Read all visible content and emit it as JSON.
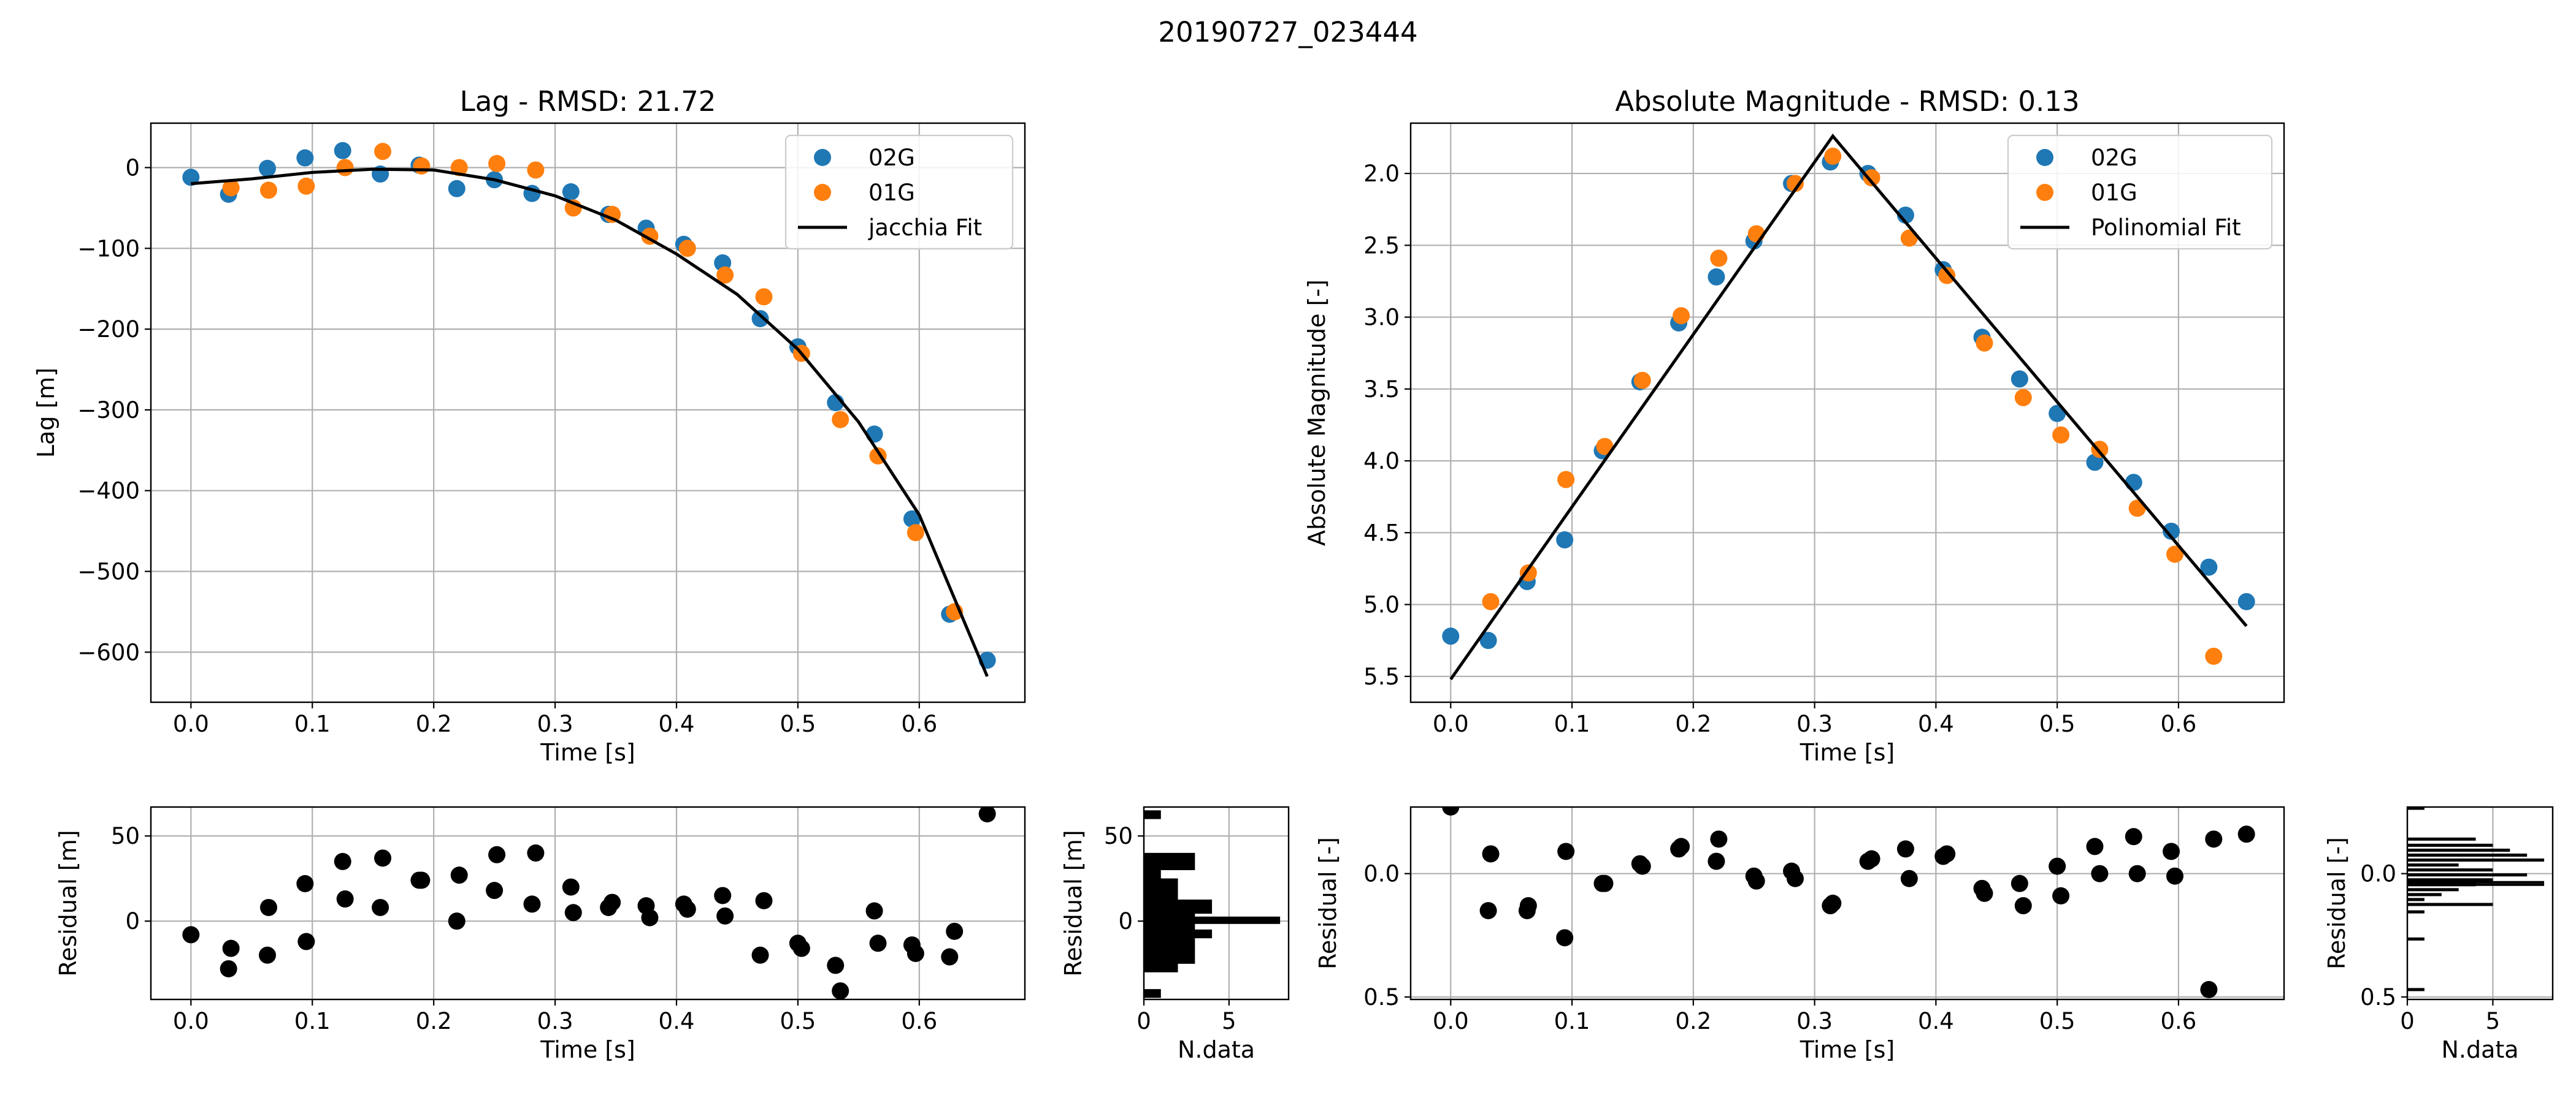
{
  "figure_title": "20190727_023444",
  "colors": {
    "series_02G": "#1f77b4",
    "series_01G": "#ff7f0e",
    "fit": "#000000",
    "residual": "#000000",
    "grid": "#b0b0b0"
  },
  "chart_data": [
    {
      "type": "scatter",
      "title": "Lag - RMSD: 21.72",
      "xlabel": "Time [s]",
      "ylabel": "Lag [m]",
      "xlim": [
        -0.033,
        0.687
      ],
      "ylim": [
        -662,
        55
      ],
      "xticks": [
        "0.0",
        "0.1",
        "0.2",
        "0.3",
        "0.4",
        "0.5",
        "0.6"
      ],
      "yticks": [
        "0",
        "−100",
        "−200",
        "−300",
        "−400",
        "−500",
        "−600"
      ],
      "grid": true,
      "legend": {
        "position": "top-right",
        "entries": [
          "02G",
          "01G",
          "jacchia Fit"
        ]
      },
      "series": [
        {
          "name": "02G",
          "points": [
            [
              0.0,
              -12
            ],
            [
              0.031,
              -33
            ],
            [
              0.063,
              -1
            ],
            [
              0.094,
              12
            ],
            [
              0.125,
              21
            ],
            [
              0.156,
              -8
            ],
            [
              0.188,
              3
            ],
            [
              0.219,
              -26
            ],
            [
              0.25,
              -15
            ],
            [
              0.281,
              -32
            ],
            [
              0.313,
              -30
            ],
            [
              0.344,
              -58
            ],
            [
              0.375,
              -75
            ],
            [
              0.406,
              -95
            ],
            [
              0.438,
              -118
            ],
            [
              0.469,
              -187
            ],
            [
              0.5,
              -222
            ],
            [
              0.531,
              -291
            ],
            [
              0.563,
              -330
            ],
            [
              0.594,
              -435
            ],
            [
              0.625,
              -553
            ],
            [
              0.656,
              -610
            ]
          ]
        },
        {
          "name": "01G",
          "points": [
            [
              0.033,
              -25
            ],
            [
              0.064,
              -28
            ],
            [
              0.095,
              -23
            ],
            [
              0.127,
              0
            ],
            [
              0.158,
              20
            ],
            [
              0.19,
              2
            ],
            [
              0.221,
              0
            ],
            [
              0.252,
              5
            ],
            [
              0.284,
              -3
            ],
            [
              0.315,
              -50
            ],
            [
              0.347,
              -58
            ],
            [
              0.378,
              -85
            ],
            [
              0.409,
              -100
            ],
            [
              0.44,
              -133
            ],
            [
              0.472,
              -160
            ],
            [
              0.503,
              -230
            ],
            [
              0.535,
              -312
            ],
            [
              0.566,
              -357
            ],
            [
              0.597,
              -452
            ],
            [
              0.629,
              -550
            ]
          ]
        },
        {
          "name": "jacchia Fit",
          "curve": [
            [
              0.0,
              -20
            ],
            [
              0.05,
              -14
            ],
            [
              0.1,
              -6
            ],
            [
              0.15,
              -2
            ],
            [
              0.2,
              -3
            ],
            [
              0.25,
              -15
            ],
            [
              0.3,
              -35
            ],
            [
              0.35,
              -65
            ],
            [
              0.4,
              -107
            ],
            [
              0.45,
              -157
            ],
            [
              0.5,
              -225
            ],
            [
              0.55,
              -315
            ],
            [
              0.6,
              -430
            ],
            [
              0.656,
              -630
            ]
          ]
        }
      ]
    },
    {
      "type": "scatter",
      "title": "Absolute Magnitude - RMSD: 0.13",
      "xlabel": "Time [s]",
      "ylabel": "Absolute Magnitude [-]",
      "xlim": [
        -0.033,
        0.687
      ],
      "ylim": [
        5.68,
        1.65
      ],
      "y_inverted": true,
      "xticks": [
        "0.0",
        "0.1",
        "0.2",
        "0.3",
        "0.4",
        "0.5",
        "0.6"
      ],
      "yticks": [
        "2.0",
        "2.5",
        "3.0",
        "3.5",
        "4.0",
        "4.5",
        "5.0",
        "5.5"
      ],
      "grid": true,
      "legend": {
        "position": "top-right",
        "entries": [
          "02G",
          "01G",
          "Polinomial Fit"
        ]
      },
      "series": [
        {
          "name": "02G",
          "points": [
            [
              0.0,
              5.22
            ],
            [
              0.031,
              5.25
            ],
            [
              0.063,
              4.84
            ],
            [
              0.094,
              4.55
            ],
            [
              0.125,
              3.93
            ],
            [
              0.156,
              3.45
            ],
            [
              0.188,
              3.04
            ],
            [
              0.219,
              2.72
            ],
            [
              0.25,
              2.47
            ],
            [
              0.281,
              2.07
            ],
            [
              0.313,
              1.92
            ],
            [
              0.344,
              2.0
            ],
            [
              0.375,
              2.29
            ],
            [
              0.406,
              2.67
            ],
            [
              0.438,
              3.14
            ],
            [
              0.469,
              3.43
            ],
            [
              0.5,
              3.67
            ],
            [
              0.531,
              4.01
            ],
            [
              0.563,
              4.15
            ],
            [
              0.594,
              4.49
            ],
            [
              0.625,
              4.74
            ],
            [
              0.656,
              4.98
            ]
          ]
        },
        {
          "name": "01G",
          "points": [
            [
              0.033,
              4.98
            ],
            [
              0.064,
              4.78
            ],
            [
              0.095,
              4.13
            ],
            [
              0.127,
              3.9
            ],
            [
              0.158,
              3.44
            ],
            [
              0.19,
              2.99
            ],
            [
              0.221,
              2.59
            ],
            [
              0.252,
              2.42
            ],
            [
              0.284,
              2.07
            ],
            [
              0.315,
              1.88
            ],
            [
              0.347,
              2.03
            ],
            [
              0.378,
              2.45
            ],
            [
              0.409,
              2.71
            ],
            [
              0.44,
              3.18
            ],
            [
              0.472,
              3.56
            ],
            [
              0.503,
              3.82
            ],
            [
              0.535,
              3.92
            ],
            [
              0.566,
              4.33
            ],
            [
              0.597,
              4.65
            ],
            [
              0.629,
              5.36
            ]
          ]
        },
        {
          "name": "Polinomial Fit",
          "curve": [
            [
              0.0,
              5.52
            ],
            [
              0.315,
              1.74
            ],
            [
              0.656,
              5.15
            ]
          ]
        }
      ]
    },
    {
      "type": "scatter",
      "title": "",
      "xlabel": "Time [s]",
      "ylabel": "Residual [m]",
      "xlim": [
        -0.033,
        0.687
      ],
      "ylim": [
        -46,
        67
      ],
      "xticks": [
        "0.0",
        "0.1",
        "0.2",
        "0.3",
        "0.4",
        "0.5",
        "0.6"
      ],
      "yticks": [
        "50",
        "0"
      ],
      "grid": true,
      "points": [
        [
          0.0,
          -8
        ],
        [
          0.031,
          -28
        ],
        [
          0.033,
          -16
        ],
        [
          0.063,
          -20
        ],
        [
          0.064,
          8
        ],
        [
          0.094,
          22
        ],
        [
          0.095,
          -12
        ],
        [
          0.125,
          35
        ],
        [
          0.127,
          13
        ],
        [
          0.156,
          8
        ],
        [
          0.158,
          37
        ],
        [
          0.188,
          24
        ],
        [
          0.19,
          24
        ],
        [
          0.219,
          0
        ],
        [
          0.221,
          27
        ],
        [
          0.25,
          18
        ],
        [
          0.252,
          39
        ],
        [
          0.281,
          10
        ],
        [
          0.284,
          40
        ],
        [
          0.313,
          20
        ],
        [
          0.315,
          5
        ],
        [
          0.344,
          8
        ],
        [
          0.347,
          11
        ],
        [
          0.375,
          9
        ],
        [
          0.378,
          2
        ],
        [
          0.406,
          10
        ],
        [
          0.409,
          7
        ],
        [
          0.438,
          15
        ],
        [
          0.44,
          3
        ],
        [
          0.469,
          -20
        ],
        [
          0.472,
          12
        ],
        [
          0.5,
          -13
        ],
        [
          0.503,
          -16
        ],
        [
          0.531,
          -26
        ],
        [
          0.535,
          -41
        ],
        [
          0.563,
          6
        ],
        [
          0.566,
          -13
        ],
        [
          0.594,
          -14
        ],
        [
          0.597,
          -19
        ],
        [
          0.625,
          -21
        ],
        [
          0.629,
          -6
        ],
        [
          0.656,
          63
        ]
      ]
    },
    {
      "type": "bar",
      "orientation": "horizontal",
      "title": "",
      "xlabel": "N.data",
      "ylabel": "Residual [m]",
      "xlim": [
        0,
        8.5
      ],
      "ylim": [
        -46,
        67
      ],
      "xticks": [
        "0",
        "5"
      ],
      "yticks": [
        "50",
        "0"
      ],
      "grid": true,
      "bins": [
        [
          -42.5,
          1
        ],
        [
          -37.5,
          0
        ],
        [
          -32.5,
          0
        ],
        [
          -27.5,
          2
        ],
        [
          -22.5,
          3
        ],
        [
          -17.5,
          3
        ],
        [
          -12.5,
          3
        ],
        [
          -7.5,
          4
        ],
        [
          -2.5,
          1
        ],
        [
          2.5,
          3
        ],
        [
          7.5,
          2
        ],
        [
          12.5,
          2
        ],
        [
          17.5,
          2
        ],
        [
          22.5,
          2
        ],
        [
          27.5,
          1
        ],
        [
          32.5,
          3
        ],
        [
          37.5,
          3
        ],
        [
          42.5,
          0
        ],
        [
          47.5,
          0
        ],
        [
          52.5,
          0
        ],
        [
          57.5,
          0
        ],
        [
          62.5,
          1
        ]
      ],
      "bins_fine": [
        [
          0.5,
          8
        ],
        [
          10.5,
          4
        ],
        [
          -3.5,
          3
        ],
        [
          6.5,
          4
        ]
      ]
    },
    {
      "type": "scatter",
      "title": "",
      "xlabel": "Time [s]",
      "ylabel": "Residual [-]",
      "xlim": [
        -0.033,
        0.687
      ],
      "ylim": [
        0.51,
        -0.27
      ],
      "y_inverted": true,
      "xticks": [
        "0.0",
        "0.1",
        "0.2",
        "0.3",
        "0.4",
        "0.5",
        "0.6"
      ],
      "yticks": [
        "0.0",
        "0.5"
      ],
      "grid": true,
      "points": [
        [
          0.0,
          -0.27
        ],
        [
          0.031,
          0.15
        ],
        [
          0.033,
          -0.08
        ],
        [
          0.063,
          0.15
        ],
        [
          0.064,
          0.13
        ],
        [
          0.094,
          0.26
        ],
        [
          0.095,
          -0.09
        ],
        [
          0.125,
          0.04
        ],
        [
          0.127,
          0.04
        ],
        [
          0.156,
          -0.04
        ],
        [
          0.158,
          -0.03
        ],
        [
          0.188,
          -0.1
        ],
        [
          0.19,
          -0.11
        ],
        [
          0.219,
          -0.05
        ],
        [
          0.221,
          -0.14
        ],
        [
          0.25,
          0.01
        ],
        [
          0.252,
          0.03
        ],
        [
          0.281,
          -0.01
        ],
        [
          0.284,
          0.02
        ],
        [
          0.313,
          0.13
        ],
        [
          0.315,
          0.12
        ],
        [
          0.344,
          -0.05
        ],
        [
          0.347,
          -0.06
        ],
        [
          0.375,
          -0.1
        ],
        [
          0.378,
          0.02
        ],
        [
          0.406,
          -0.07
        ],
        [
          0.409,
          -0.08
        ],
        [
          0.438,
          0.06
        ],
        [
          0.44,
          0.08
        ],
        [
          0.469,
          0.04
        ],
        [
          0.472,
          0.13
        ],
        [
          0.5,
          -0.03
        ],
        [
          0.503,
          0.09
        ],
        [
          0.531,
          -0.11
        ],
        [
          0.535,
          0.0
        ],
        [
          0.563,
          -0.15
        ],
        [
          0.566,
          0.0
        ],
        [
          0.594,
          -0.09
        ],
        [
          0.597,
          0.01
        ],
        [
          0.625,
          0.47
        ],
        [
          0.629,
          -0.14
        ],
        [
          0.656,
          -0.16
        ]
      ]
    },
    {
      "type": "bar",
      "orientation": "horizontal",
      "title": "",
      "xlabel": "N.data",
      "ylabel": "Residual [-]",
      "xlim": [
        0,
        8.5
      ],
      "ylim": [
        0.51,
        -0.27
      ],
      "y_inverted": true,
      "xticks": [
        "0",
        "5"
      ],
      "yticks": [
        "0.0",
        "0.5"
      ],
      "grid": true,
      "bins": [
        [
          -0.265,
          1
        ],
        [
          -0.14,
          4
        ],
        [
          -0.115,
          5
        ],
        [
          -0.095,
          6
        ],
        [
          -0.075,
          7
        ],
        [
          -0.055,
          8
        ],
        [
          -0.035,
          3
        ],
        [
          -0.015,
          5
        ],
        [
          0.005,
          7
        ],
        [
          0.025,
          5
        ],
        [
          0.045,
          4
        ],
        [
          0.065,
          3
        ],
        [
          0.085,
          2
        ],
        [
          0.105,
          1
        ],
        [
          0.125,
          5
        ],
        [
          0.155,
          1
        ],
        [
          0.265,
          1
        ],
        [
          0.47,
          1
        ]
      ],
      "lines": [
        [
          0.035,
          8
        ],
        [
          0.045,
          8
        ]
      ]
    }
  ]
}
